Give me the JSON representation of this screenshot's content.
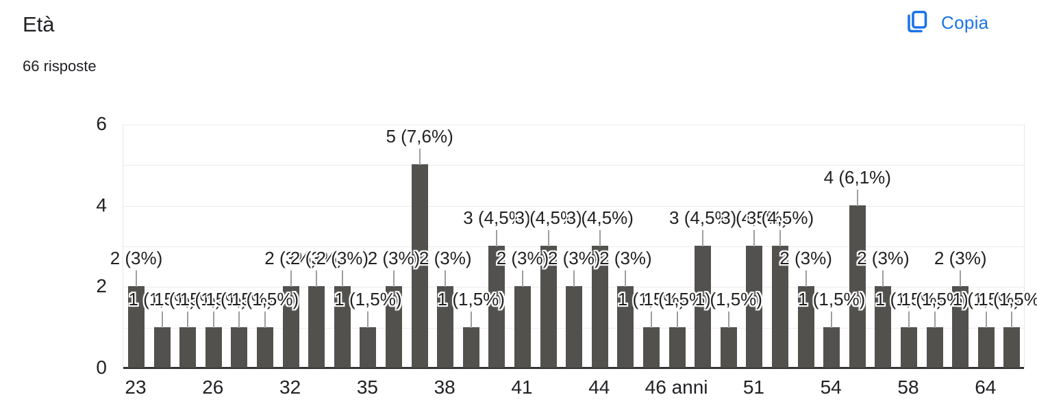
{
  "header": {
    "title": "Età",
    "subtitle": "66 risposte"
  },
  "toolbar": {
    "copy_label": "Copia",
    "copy_icon": "copy-icon",
    "accent_color": "#1a73e8"
  },
  "chart_data": {
    "type": "bar",
    "title": "Età",
    "subtitle": "66 risposte",
    "n_bars": 35,
    "values": [
      2,
      1,
      1,
      1,
      1,
      1,
      2,
      2,
      2,
      1,
      2,
      5,
      2,
      1,
      3,
      2,
      3,
      2,
      3,
      2,
      1,
      1,
      3,
      1,
      3,
      3,
      2,
      1,
      4,
      2,
      1,
      1,
      2,
      1,
      1
    ],
    "bar_labels": [
      "2 (3%)",
      "1 (1,5%)",
      "1 (1,5%)",
      "1 (1,5%)",
      "1 (1,5%)",
      "1 (1,5%)",
      "2 (3%)",
      "2 (3%)",
      "2 (3%)",
      "1 (1,5%)",
      "2 (3%)",
      "5 (7,6%)",
      "2 (3%)",
      "1 (1,5%)",
      "3 (4,5%)",
      "2 (3%)",
      "3 (4,5%)",
      "2 (3%)",
      "3 (4,5%)",
      "2 (3%)",
      "1 (1,5%)",
      "1 (1,5%)",
      "3 (4,5%)",
      "1 (1,5%)",
      "3 (4,5%)",
      "3 (4,5%)",
      "2 (3%)",
      "1 (1,5%)",
      "4 (6,1%)",
      "2 (3%)",
      "1 (1,5%)",
      "1 (1,5%)",
      "2 (3%)",
      "1 (1,5%)",
      "1 (1,5%)"
    ],
    "x_ticks": [
      {
        "index": 0,
        "label": "23"
      },
      {
        "index": 3,
        "label": "26"
      },
      {
        "index": 6,
        "label": "32"
      },
      {
        "index": 9,
        "label": "35"
      },
      {
        "index": 12,
        "label": "38"
      },
      {
        "index": 15,
        "label": "41"
      },
      {
        "index": 18,
        "label": "44"
      },
      {
        "index": 21,
        "label": "46 anni"
      },
      {
        "index": 24,
        "label": "51"
      },
      {
        "index": 27,
        "label": "54"
      },
      {
        "index": 30,
        "label": "58"
      },
      {
        "index": 33,
        "label": "64"
      }
    ],
    "y_ticks": [
      0,
      2,
      4,
      6
    ],
    "ylim": [
      0,
      6
    ],
    "grid": true,
    "legend": "none",
    "colors": {
      "bar": "#52514E",
      "grid": "#ececec",
      "stem": "#9e9e9e",
      "label": "#212121",
      "axis_text": "#202124"
    }
  }
}
